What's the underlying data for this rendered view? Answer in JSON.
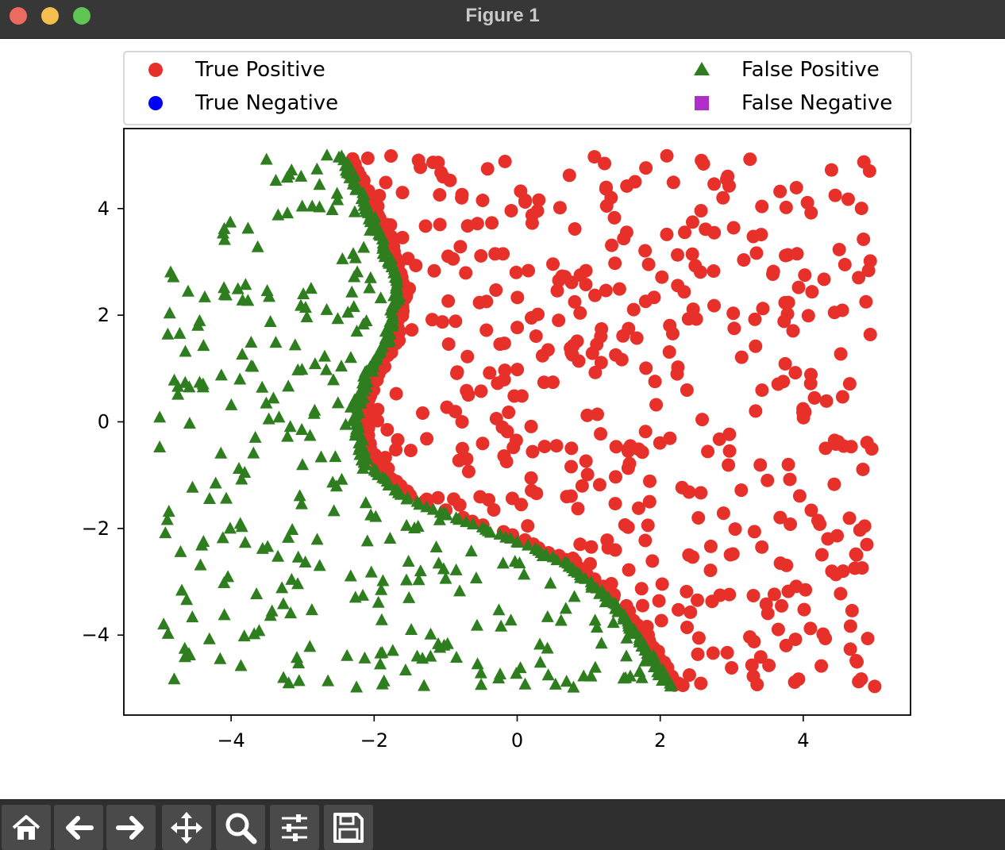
{
  "window": {
    "title": "Figure 1",
    "traffic_lights": [
      "close",
      "minimize",
      "maximize"
    ]
  },
  "toolbar": {
    "buttons": [
      {
        "icon": "home-icon",
        "name": "home"
      },
      {
        "icon": "back-arrow-icon",
        "name": "back"
      },
      {
        "icon": "forward-arrow-icon",
        "name": "forward"
      },
      {
        "icon": "pan-move-icon",
        "name": "pan"
      },
      {
        "icon": "zoom-magnifier-icon",
        "name": "zoom"
      },
      {
        "icon": "configure-subplots-icon",
        "name": "configure subplots"
      },
      {
        "icon": "save-disk-icon",
        "name": "save"
      }
    ]
  },
  "chart_data": {
    "type": "scatter",
    "title": "",
    "xlabel": "",
    "ylabel": "",
    "xlim": [
      -5.5,
      5.5
    ],
    "ylim": [
      -5.5,
      5.5
    ],
    "xticks": [
      -4,
      -2,
      0,
      2,
      4
    ],
    "yticks": [
      -4,
      -2,
      0,
      2,
      4
    ],
    "xtick_labels": [
      "−4",
      "−2",
      "0",
      "2",
      "4"
    ],
    "ytick_labels": [
      "−4",
      "−2",
      "0",
      "2",
      "4"
    ],
    "grid": false,
    "legend": {
      "placement": "above plot, two columns",
      "entries": [
        {
          "label": "True Positive",
          "marker": "circle",
          "color": "#e8302a"
        },
        {
          "label": "False Positive",
          "marker": "triangle",
          "color": "#2e7d1f"
        },
        {
          "label": "True Negative",
          "marker": "circle",
          "color": "#0000ff"
        },
        {
          "label": "False Negative",
          "marker": "square",
          "color": "#b02fc9"
        }
      ]
    },
    "x_range_of_samples": [
      -5,
      5
    ],
    "y_range_of_samples": [
      -5,
      5
    ],
    "boundary_curve": {
      "description": "S-shaped decision boundary dividing green triangles (left) from red circles (right)",
      "points": [
        {
          "x": -2.4,
          "y": 5.0
        },
        {
          "x": -2.2,
          "y": 4.5
        },
        {
          "x": -1.85,
          "y": 3.5
        },
        {
          "x": -1.6,
          "y": 2.5
        },
        {
          "x": -1.75,
          "y": 1.5
        },
        {
          "x": -2.05,
          "y": 0.8
        },
        {
          "x": -2.2,
          "y": 0.0
        },
        {
          "x": -2.05,
          "y": -0.8
        },
        {
          "x": -1.55,
          "y": -1.4
        },
        {
          "x": -0.8,
          "y": -1.8
        },
        {
          "x": 0.0,
          "y": -2.2
        },
        {
          "x": 0.8,
          "y": -2.7
        },
        {
          "x": 1.4,
          "y": -3.4
        },
        {
          "x": 1.9,
          "y": -4.3
        },
        {
          "x": 2.2,
          "y": -5.0
        }
      ]
    },
    "series": [
      {
        "name": "True Positive",
        "marker": "circle",
        "color": "#e8302a",
        "count": 560,
        "region": "right of boundary"
      },
      {
        "name": "False Positive",
        "marker": "triangle",
        "color": "#2e7d1f",
        "count": 520,
        "region": "left of boundary"
      },
      {
        "name": "True Negative",
        "marker": "circle",
        "color": "#0000ff",
        "count": 0
      },
      {
        "name": "False Negative",
        "marker": "square",
        "color": "#b02fc9",
        "count": 0
      }
    ]
  }
}
